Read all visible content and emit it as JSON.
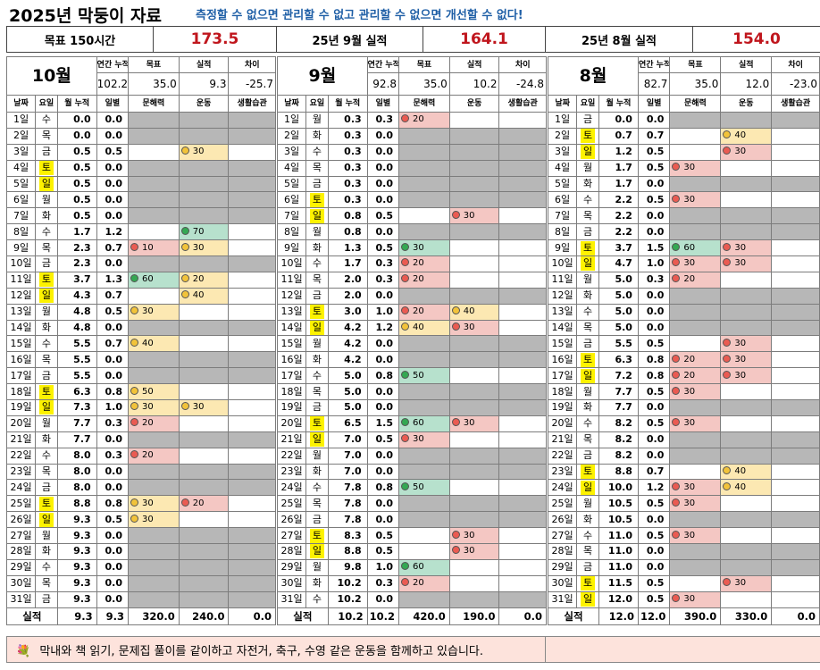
{
  "title": "2025년 막둥이 자료",
  "slogan": "측정할 수 없으면 관리할 수 없고 관리할 수 없으면 개선할 수 없다!",
  "summary": [
    {
      "label": "목표 150시간",
      "value": "173.5"
    },
    {
      "label": "25년 9월 실적",
      "value": "164.1"
    },
    {
      "label": "25년 8월 실적",
      "value": "154.0"
    }
  ],
  "head_labels": {
    "annual": "연간 누적",
    "goal": "목표",
    "actual": "실적",
    "diff": "차이"
  },
  "columns": [
    "날짜",
    "요일",
    "월 누적",
    "일별",
    "문해력",
    "운동",
    "생활습관"
  ],
  "total_label": "실적",
  "colors": {
    "red": "#f4c7c3",
    "yellow": "#fce8b2",
    "green": "#b7e1cd",
    "grey": "#b7b7b7",
    "weekend": "#fdf200",
    "summary_value": "#c0161d",
    "slogan": "#1f5fa6",
    "footer_bg": "#fde3dc"
  },
  "footer": {
    "icon": "bouquet-icon",
    "text": "막내와 책 읽기, 문제집 풀이를 같이하고 자전거, 축구, 수영 같은 운동을 함께하고 있습니다."
  },
  "months": [
    {
      "month": "10월",
      "annual": "102.2",
      "goal": "35.0",
      "actual": "9.3",
      "diff": "-25.7",
      "rows": [
        [
          "1일",
          "수",
          "0.0",
          "0.0",
          "",
          ""
        ],
        [
          "2일",
          "목",
          "0.0",
          "0.0",
          "",
          ""
        ],
        [
          "3일",
          "금",
          "0.5",
          "0.5",
          "",
          "y30"
        ],
        [
          "4일",
          "토",
          "0.5",
          "0.0",
          "",
          ""
        ],
        [
          "5일",
          "일",
          "0.5",
          "0.0",
          "",
          ""
        ],
        [
          "6일",
          "월",
          "0.5",
          "0.0",
          "",
          ""
        ],
        [
          "7일",
          "화",
          "0.5",
          "0.0",
          "",
          ""
        ],
        [
          "8일",
          "수",
          "1.7",
          "1.2",
          "",
          "g70"
        ],
        [
          "9일",
          "목",
          "2.3",
          "0.7",
          "r10",
          "y30"
        ],
        [
          "10일",
          "금",
          "2.3",
          "0.0",
          "",
          ""
        ],
        [
          "11일",
          "토",
          "3.7",
          "1.3",
          "g60",
          "y20"
        ],
        [
          "12일",
          "일",
          "4.3",
          "0.7",
          "",
          "y40"
        ],
        [
          "13일",
          "월",
          "4.8",
          "0.5",
          "y30",
          ""
        ],
        [
          "14일",
          "화",
          "4.8",
          "0.0",
          "",
          ""
        ],
        [
          "15일",
          "수",
          "5.5",
          "0.7",
          "y40",
          ""
        ],
        [
          "16일",
          "목",
          "5.5",
          "0.0",
          "",
          ""
        ],
        [
          "17일",
          "금",
          "5.5",
          "0.0",
          "",
          ""
        ],
        [
          "18일",
          "토",
          "6.3",
          "0.8",
          "y50",
          ""
        ],
        [
          "19일",
          "일",
          "7.3",
          "1.0",
          "y30",
          "y30"
        ],
        [
          "20일",
          "월",
          "7.7",
          "0.3",
          "r20",
          ""
        ],
        [
          "21일",
          "화",
          "7.7",
          "0.0",
          "",
          ""
        ],
        [
          "22일",
          "수",
          "8.0",
          "0.3",
          "r20",
          ""
        ],
        [
          "23일",
          "목",
          "8.0",
          "0.0",
          "",
          ""
        ],
        [
          "24일",
          "금",
          "8.0",
          "0.0",
          "",
          ""
        ],
        [
          "25일",
          "토",
          "8.8",
          "0.8",
          "y30",
          "r20"
        ],
        [
          "26일",
          "일",
          "9.3",
          "0.5",
          "y30",
          ""
        ],
        [
          "27일",
          "월",
          "9.3",
          "0.0",
          "",
          ""
        ],
        [
          "28일",
          "화",
          "9.3",
          "0.0",
          "",
          ""
        ],
        [
          "29일",
          "수",
          "9.3",
          "0.0",
          "",
          ""
        ],
        [
          "30일",
          "목",
          "9.3",
          "0.0",
          "",
          ""
        ],
        [
          "31일",
          "금",
          "9.3",
          "0.0",
          "",
          ""
        ]
      ],
      "total": [
        "9.3",
        "9.3",
        "320.0",
        "240.0",
        "0.0"
      ]
    },
    {
      "month": "9월",
      "annual": "92.8",
      "goal": "35.0",
      "actual": "10.2",
      "diff": "-24.8",
      "rows": [
        [
          "1일",
          "월",
          "0.3",
          "0.3",
          "r20",
          ""
        ],
        [
          "2일",
          "화",
          "0.3",
          "0.0",
          "",
          ""
        ],
        [
          "3일",
          "수",
          "0.3",
          "0.0",
          "",
          ""
        ],
        [
          "4일",
          "목",
          "0.3",
          "0.0",
          "",
          ""
        ],
        [
          "5일",
          "금",
          "0.3",
          "0.0",
          "",
          ""
        ],
        [
          "6일",
          "토",
          "0.3",
          "0.0",
          "",
          ""
        ],
        [
          "7일",
          "일",
          "0.8",
          "0.5",
          "",
          "r30"
        ],
        [
          "8일",
          "월",
          "0.8",
          "0.0",
          "",
          ""
        ],
        [
          "9일",
          "화",
          "1.3",
          "0.5",
          "g30",
          ""
        ],
        [
          "10일",
          "수",
          "1.7",
          "0.3",
          "r20",
          ""
        ],
        [
          "11일",
          "목",
          "2.0",
          "0.3",
          "r20",
          ""
        ],
        [
          "12일",
          "금",
          "2.0",
          "0.0",
          "",
          ""
        ],
        [
          "13일",
          "토",
          "3.0",
          "1.0",
          "r20",
          "y40"
        ],
        [
          "14일",
          "일",
          "4.2",
          "1.2",
          "y40",
          "r30"
        ],
        [
          "15일",
          "월",
          "4.2",
          "0.0",
          "",
          ""
        ],
        [
          "16일",
          "화",
          "4.2",
          "0.0",
          "",
          ""
        ],
        [
          "17일",
          "수",
          "5.0",
          "0.8",
          "g50",
          ""
        ],
        [
          "18일",
          "목",
          "5.0",
          "0.0",
          "",
          ""
        ],
        [
          "19일",
          "금",
          "5.0",
          "0.0",
          "",
          ""
        ],
        [
          "20일",
          "토",
          "6.5",
          "1.5",
          "g60",
          "r30"
        ],
        [
          "21일",
          "일",
          "7.0",
          "0.5",
          "r30",
          ""
        ],
        [
          "22일",
          "월",
          "7.0",
          "0.0",
          "",
          ""
        ],
        [
          "23일",
          "화",
          "7.0",
          "0.0",
          "",
          ""
        ],
        [
          "24일",
          "수",
          "7.8",
          "0.8",
          "g50",
          ""
        ],
        [
          "25일",
          "목",
          "7.8",
          "0.0",
          "",
          ""
        ],
        [
          "26일",
          "금",
          "7.8",
          "0.0",
          "",
          ""
        ],
        [
          "27일",
          "토",
          "8.3",
          "0.5",
          "",
          "r30"
        ],
        [
          "28일",
          "일",
          "8.8",
          "0.5",
          "",
          "r30"
        ],
        [
          "29일",
          "월",
          "9.8",
          "1.0",
          "g60",
          ""
        ],
        [
          "30일",
          "화",
          "10.2",
          "0.3",
          "r20",
          ""
        ],
        [
          "31일",
          "수",
          "10.2",
          "0.0",
          "",
          ""
        ]
      ],
      "total": [
        "10.2",
        "10.2",
        "420.0",
        "190.0",
        "0.0"
      ]
    },
    {
      "month": "8월",
      "annual": "82.7",
      "goal": "35.0",
      "actual": "12.0",
      "diff": "-23.0",
      "rows": [
        [
          "1일",
          "금",
          "0.0",
          "0.0",
          "",
          ""
        ],
        [
          "2일",
          "토",
          "0.7",
          "0.7",
          "",
          "y40"
        ],
        [
          "3일",
          "일",
          "1.2",
          "0.5",
          "",
          "r30"
        ],
        [
          "4일",
          "월",
          "1.7",
          "0.5",
          "r30",
          ""
        ],
        [
          "5일",
          "화",
          "1.7",
          "0.0",
          "",
          ""
        ],
        [
          "6일",
          "수",
          "2.2",
          "0.5",
          "r30",
          ""
        ],
        [
          "7일",
          "목",
          "2.2",
          "0.0",
          "",
          ""
        ],
        [
          "8일",
          "금",
          "2.2",
          "0.0",
          "",
          ""
        ],
        [
          "9일",
          "토",
          "3.7",
          "1.5",
          "g60",
          "r30"
        ],
        [
          "10일",
          "일",
          "4.7",
          "1.0",
          "r30",
          "r30"
        ],
        [
          "11일",
          "월",
          "5.0",
          "0.3",
          "r20",
          ""
        ],
        [
          "12일",
          "화",
          "5.0",
          "0.0",
          "",
          ""
        ],
        [
          "13일",
          "수",
          "5.0",
          "0.0",
          "",
          ""
        ],
        [
          "14일",
          "목",
          "5.0",
          "0.0",
          "",
          ""
        ],
        [
          "15일",
          "금",
          "5.5",
          "0.5",
          "",
          "r30"
        ],
        [
          "16일",
          "토",
          "6.3",
          "0.8",
          "r20",
          "r30"
        ],
        [
          "17일",
          "일",
          "7.2",
          "0.8",
          "r20",
          "r30"
        ],
        [
          "18일",
          "월",
          "7.7",
          "0.5",
          "r30",
          ""
        ],
        [
          "19일",
          "화",
          "7.7",
          "0.0",
          "",
          ""
        ],
        [
          "20일",
          "수",
          "8.2",
          "0.5",
          "r30",
          ""
        ],
        [
          "21일",
          "목",
          "8.2",
          "0.0",
          "",
          ""
        ],
        [
          "22일",
          "금",
          "8.2",
          "0.0",
          "",
          ""
        ],
        [
          "23일",
          "토",
          "8.8",
          "0.7",
          "",
          "y40"
        ],
        [
          "24일",
          "일",
          "10.0",
          "1.2",
          "r30",
          "y40"
        ],
        [
          "25일",
          "월",
          "10.5",
          "0.5",
          "r30",
          ""
        ],
        [
          "26일",
          "화",
          "10.5",
          "0.0",
          "",
          ""
        ],
        [
          "27일",
          "수",
          "11.0",
          "0.5",
          "r30",
          ""
        ],
        [
          "28일",
          "목",
          "11.0",
          "0.0",
          "",
          ""
        ],
        [
          "29일",
          "금",
          "11.0",
          "0.0",
          "",
          ""
        ],
        [
          "30일",
          "토",
          "11.5",
          "0.5",
          "",
          "r30"
        ],
        [
          "31일",
          "일",
          "12.0",
          "0.5",
          "r30",
          ""
        ]
      ],
      "total": [
        "12.0",
        "12.0",
        "390.0",
        "330.0",
        "0.0"
      ]
    }
  ]
}
